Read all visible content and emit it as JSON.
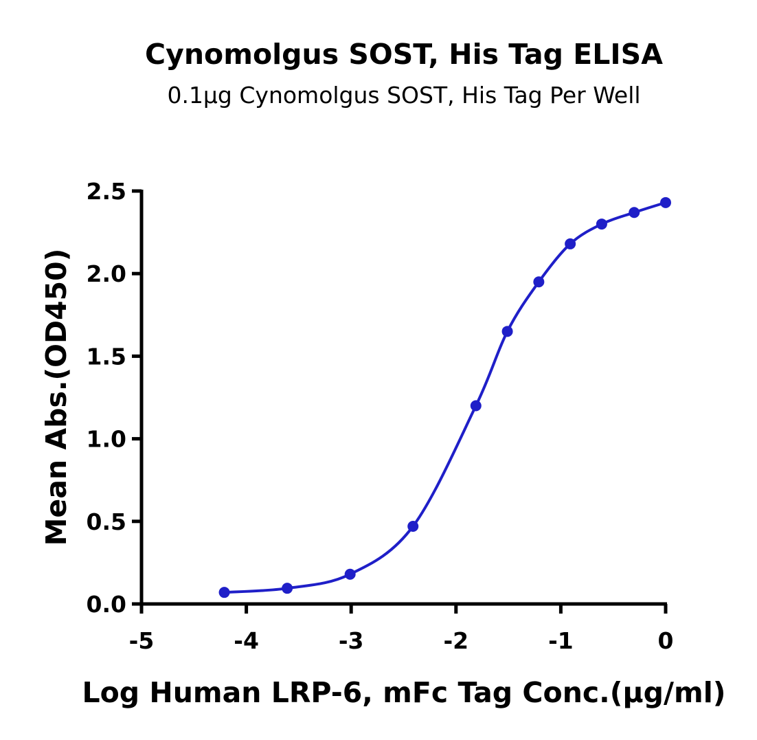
{
  "chart_data": {
    "type": "line",
    "title": "Cynomolgus SOST, His Tag ELISA",
    "subtitle": "0.1μg Cynomolgus SOST, His Tag Per Well",
    "xlabel": "Log Human LRP-6, mFc Tag Conc.(μg/ml)",
    "ylabel": "Mean Abs.(OD450)",
    "xlim": [
      -5,
      0
    ],
    "ylim": [
      0,
      2.5
    ],
    "xticks": [
      -5,
      -4,
      -3,
      -2,
      -1,
      0
    ],
    "xtick_labels": [
      "-5",
      "-4",
      "-3",
      "-2",
      "-1",
      "0"
    ],
    "yticks": [
      0,
      0.5,
      1.0,
      1.5,
      2.0,
      2.5
    ],
    "ytick_labels": [
      "0.0",
      "0.5",
      "1.0",
      "1.5",
      "2.0",
      "2.5"
    ],
    "grid": false,
    "series": [
      {
        "color": "#1f1fc8",
        "x": [
          -4.21,
          -3.61,
          -3.01,
          -2.41,
          -1.81,
          -1.51,
          -1.21,
          -0.91,
          -0.61,
          -0.3,
          0.0
        ],
        "y": [
          0.07,
          0.095,
          0.18,
          0.47,
          1.2,
          1.65,
          1.95,
          2.18,
          2.3,
          2.37,
          2.43
        ],
        "fit_curve": true
      }
    ]
  }
}
